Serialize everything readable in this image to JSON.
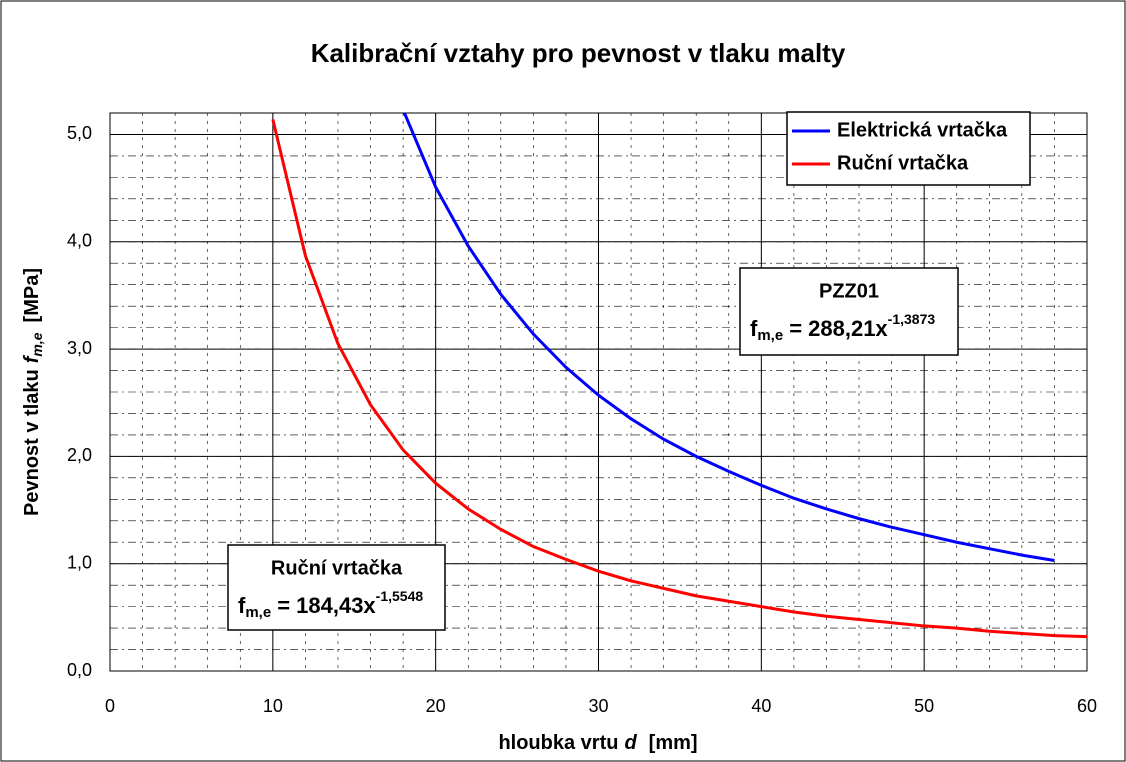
{
  "chart_data": {
    "type": "line",
    "title": "Kalibrační vztahy pro pevnost v tlaku malty",
    "ylabel": [
      "Pevnost v tlaku",
      "f",
      "m,e",
      "[MPa]"
    ],
    "xlabel": [
      "hloubka vrtu",
      "d",
      "[mm]"
    ],
    "xlim": [
      0,
      60
    ],
    "ylim": [
      0,
      5.2
    ],
    "xticks": [
      0,
      10,
      20,
      30,
      40,
      50,
      60
    ],
    "yticks": [
      {
        "value": 0,
        "label": "0,0"
      },
      {
        "value": 1,
        "label": "1,0"
      },
      {
        "value": 2,
        "label": "2,0"
      },
      {
        "value": 3,
        "label": "3,0"
      },
      {
        "value": 4,
        "label": "4,0"
      },
      {
        "value": 5,
        "label": "5,0"
      }
    ],
    "grid": true,
    "minor_grid": true,
    "legend": "upper right",
    "series": [
      {
        "name": "Elektrická vrtačka",
        "color": "#0000ff",
        "x": [
          18,
          20,
          22,
          24,
          26,
          28,
          30,
          32,
          34,
          36,
          38,
          40,
          42,
          44,
          46,
          48,
          50,
          52,
          54,
          56,
          58
        ],
        "values": [
          5.23,
          4.51,
          3.96,
          3.51,
          3.14,
          2.83,
          2.57,
          2.35,
          2.16,
          2.0,
          1.86,
          1.73,
          1.61,
          1.51,
          1.42,
          1.34,
          1.27,
          1.2,
          1.14,
          1.08,
          1.03
        ]
      },
      {
        "name": "Ruční vrtačka",
        "color": "#ff0000",
        "x": [
          10,
          12,
          14,
          16,
          18,
          20,
          22,
          24,
          26,
          28,
          30,
          32,
          34,
          36,
          38,
          40,
          42,
          44,
          46,
          48,
          50,
          52,
          54,
          56,
          58,
          60
        ],
        "values": [
          5.14,
          3.87,
          3.05,
          2.48,
          2.06,
          1.75,
          1.51,
          1.32,
          1.16,
          1.04,
          0.93,
          0.84,
          0.77,
          0.7,
          0.65,
          0.6,
          0.55,
          0.51,
          0.48,
          0.45,
          0.42,
          0.4,
          0.37,
          0.35,
          0.33,
          0.32
        ]
      }
    ],
    "annotations": [
      {
        "title": "PZZ01",
        "base": "f",
        "sub": "m,e",
        "main": "= 288,21x",
        "exp": "-1,3873",
        "color": "#0000ff"
      },
      {
        "title": "Ruční vrtačka",
        "base": "f",
        "sub": "m,e",
        "main": "= 184,43x",
        "exp": "-1,5548",
        "color": "#ff0000"
      }
    ]
  }
}
